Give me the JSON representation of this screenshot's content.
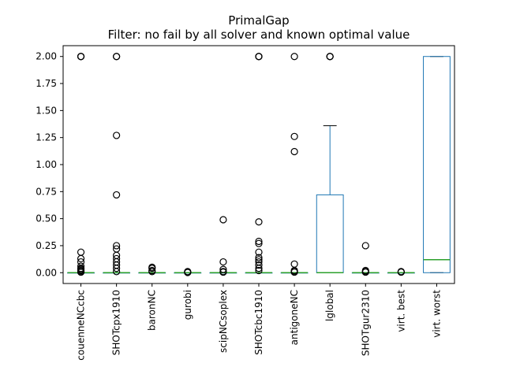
{
  "chart_data": {
    "type": "box",
    "title": "PrimalGap",
    "subtitle": "Filter: no fail by all solver and known optimal value",
    "xlabel": "",
    "ylabel": "",
    "ylim": [
      -0.1,
      2.1
    ],
    "yticks": [
      0.0,
      0.25,
      0.5,
      0.75,
      1.0,
      1.25,
      1.5,
      1.75,
      2.0
    ],
    "ytick_labels": [
      "0.00",
      "0.25",
      "0.50",
      "0.75",
      "1.00",
      "1.25",
      "1.50",
      "1.75",
      "2.00"
    ],
    "grid": false,
    "legend": "none",
    "colors": {
      "box": "#1f77b4",
      "median": "#2ca02c",
      "flier": "#000000"
    },
    "categories": [
      "couenneNCcbc",
      "SHOTcpx1910",
      "baronNC",
      "gurobi",
      "scipNCsoplex",
      "SHOTcbc1910",
      "antigoneNC",
      "lglobal",
      "SHOTgur2310",
      "virt. best",
      "virt. worst"
    ],
    "boxes": [
      {
        "name": "couenneNCcbc",
        "q1": 0.0,
        "median": 0.0,
        "q3": 0.0,
        "whislo": 0.0,
        "whishi": 0.0,
        "fliers": [
          2.0,
          2.0,
          2.0,
          0.19,
          0.13,
          0.1,
          0.06,
          0.04,
          0.03,
          0.02,
          0.01,
          0.005
        ]
      },
      {
        "name": "SHOTcpx1910",
        "q1": 0.0,
        "median": 0.0,
        "q3": 0.0,
        "whislo": 0.0,
        "whishi": 0.0,
        "fliers": [
          2.0,
          2.0,
          1.27,
          0.72,
          0.25,
          0.22,
          0.16,
          0.13,
          0.1,
          0.07,
          0.04,
          0.01
        ]
      },
      {
        "name": "baronNC",
        "q1": 0.0,
        "median": 0.0,
        "q3": 0.0,
        "whislo": 0.0,
        "whishi": 0.0,
        "fliers": [
          0.05,
          0.04,
          0.02,
          0.01
        ]
      },
      {
        "name": "gurobi",
        "q1": 0.0,
        "median": 0.0,
        "q3": 0.0,
        "whislo": 0.0,
        "whishi": 0.0,
        "fliers": [
          0.01,
          0.005,
          0.002
        ]
      },
      {
        "name": "scipNCsoplex",
        "q1": 0.0,
        "median": 0.0,
        "q3": 0.0,
        "whislo": 0.0,
        "whishi": 0.0,
        "fliers": [
          0.49,
          0.1,
          0.03,
          0.01,
          0.005
        ]
      },
      {
        "name": "SHOTcbc1910",
        "q1": 0.0,
        "median": 0.0,
        "q3": 0.0,
        "whislo": 0.0,
        "whishi": 0.0,
        "fliers": [
          2.0,
          2.0,
          2.0,
          0.47,
          0.29,
          0.27,
          0.19,
          0.14,
          0.12,
          0.1,
          0.07,
          0.04,
          0.02
        ]
      },
      {
        "name": "antigoneNC",
        "q1": 0.0,
        "median": 0.0,
        "q3": 0.0,
        "whislo": 0.0,
        "whishi": 0.0,
        "fliers": [
          2.0,
          1.26,
          1.12,
          0.08,
          0.02,
          0.01,
          0.005
        ]
      },
      {
        "name": "lglobal",
        "q1": 0.0,
        "median": 0.0,
        "q3": 0.72,
        "whislo": 0.0,
        "whishi": 1.36,
        "fliers": [
          2.0,
          2.0,
          2.0
        ]
      },
      {
        "name": "SHOTgur2310",
        "q1": 0.0,
        "median": 0.0,
        "q3": 0.0,
        "whislo": 0.0,
        "whishi": 0.0,
        "fliers": [
          0.25,
          0.02,
          0.01,
          0.005
        ]
      },
      {
        "name": "virt. best",
        "q1": 0.0,
        "median": 0.0,
        "q3": 0.0,
        "whislo": 0.0,
        "whishi": 0.0,
        "fliers": [
          0.01,
          0.005
        ]
      },
      {
        "name": "virt. worst",
        "q1": 0.0,
        "median": 0.12,
        "q3": 2.0,
        "whislo": 0.0,
        "whishi": 2.0,
        "fliers": []
      }
    ]
  }
}
